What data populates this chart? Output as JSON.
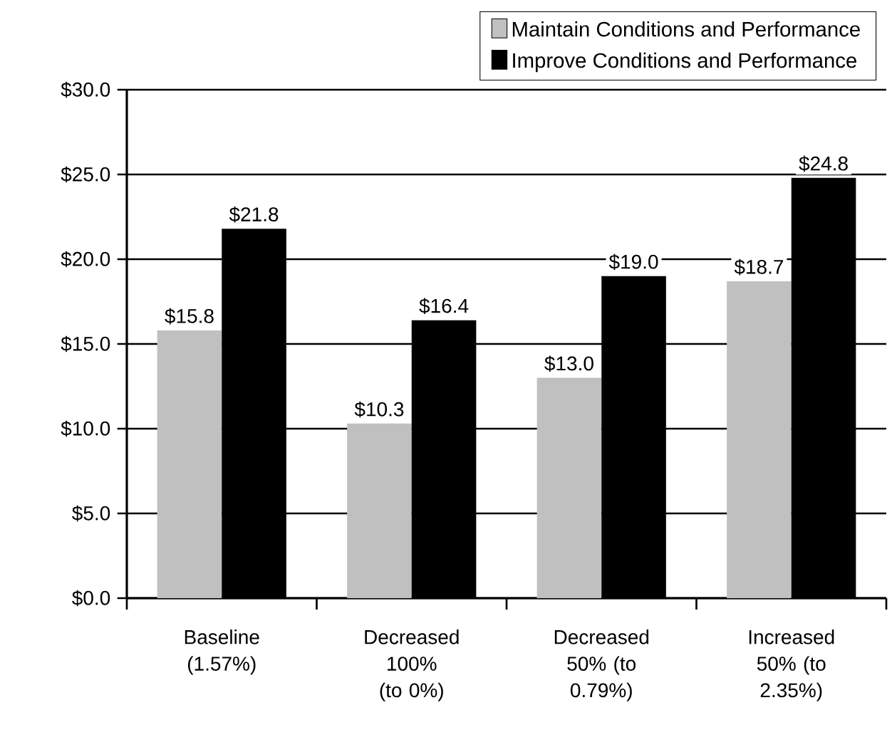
{
  "chart_data": {
    "type": "bar",
    "categories": [
      "Baseline (1.57%)",
      "Decreased 100% (to 0%)",
      "Decreased 50% (to 0.79%)",
      "Increased 50% (to 2.35%)"
    ],
    "series": [
      {
        "name": "Maintain Conditions and Performance",
        "color": "#c0c0c0",
        "values": [
          15.8,
          10.3,
          13.0,
          18.7
        ],
        "value_labels": [
          "$15.8",
          "$10.3",
          "$13.0",
          "$18.7"
        ]
      },
      {
        "name": "Improve Conditions and Performance",
        "color": "#000000",
        "values": [
          21.8,
          16.4,
          19.0,
          24.8
        ],
        "value_labels": [
          "$21.8",
          "$16.4",
          "$19.0",
          "$24.8"
        ]
      }
    ],
    "ylim": [
      0,
      30
    ],
    "yticks": [
      {
        "value": 0,
        "label": "$0.0"
      },
      {
        "value": 5,
        "label": "$5.0"
      },
      {
        "value": 10,
        "label": "$10.0"
      },
      {
        "value": 15,
        "label": "$15.0"
      },
      {
        "value": 20,
        "label": "$20.0"
      },
      {
        "value": 25,
        "label": "$25.0"
      },
      {
        "value": 30,
        "label": "$30.0"
      }
    ],
    "grid": "y",
    "legend": "top right"
  }
}
